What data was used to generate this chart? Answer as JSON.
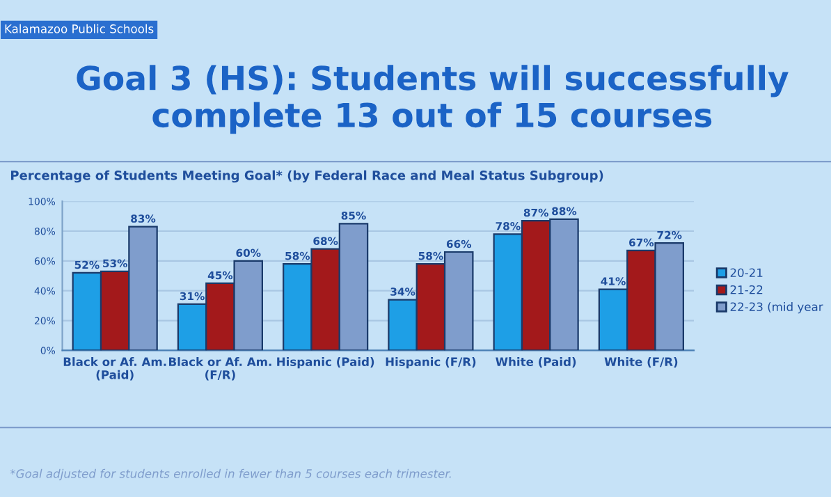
{
  "chart_data": {
    "type": "bar",
    "title": "Goal 3 (HS): Students will successfully complete 13 out of 15 courses",
    "subtitle": "Percentage of Students Meeting Goal* (by Federal Race and Meal Status Subgroup)",
    "annotations": [
      "Kalamazoo Public Schools",
      "*Goal adjusted for students enrolled in fewer than 5 courses each trimester."
    ],
    "categories": [
      "Black or Af. Am.\n(Paid)",
      "Black or Af. Am.\n(F/R)",
      "Hispanic (Paid)",
      "Hispanic (F/R)",
      "White (Paid)",
      "White (F/R)"
    ],
    "series": [
      {
        "name": "20-21",
        "color": "#1e9fe6",
        "values": [
          52,
          31,
          58,
          34,
          78,
          41
        ],
        "value_labels": [
          "52%",
          "31%",
          "58%",
          "34%",
          "78%",
          "41%"
        ]
      },
      {
        "name": "21-22",
        "color": "#a3191b",
        "values": [
          53,
          45,
          68,
          58,
          87,
          67
        ],
        "value_labels": [
          "53%",
          "45%",
          "68%",
          "58%",
          "87%",
          "67%"
        ]
      },
      {
        "name": "22-23 (mid year",
        "color": "#7f9dcc",
        "values": [
          83,
          60,
          85,
          66,
          88,
          72
        ],
        "value_labels": [
          "83%",
          "60%",
          "85%",
          "66%",
          "88%",
          "72%"
        ]
      }
    ],
    "ylim": [
      0,
      100
    ],
    "yticks": [
      {
        "value": 0,
        "label": "0%"
      },
      {
        "value": 20,
        "label": "20%"
      },
      {
        "value": 40,
        "label": "40%"
      },
      {
        "value": 60,
        "label": "60%"
      },
      {
        "value": 80,
        "label": "80%"
      },
      {
        "value": 100,
        "label": "100%"
      }
    ],
    "grid": "y",
    "legend": "right"
  }
}
